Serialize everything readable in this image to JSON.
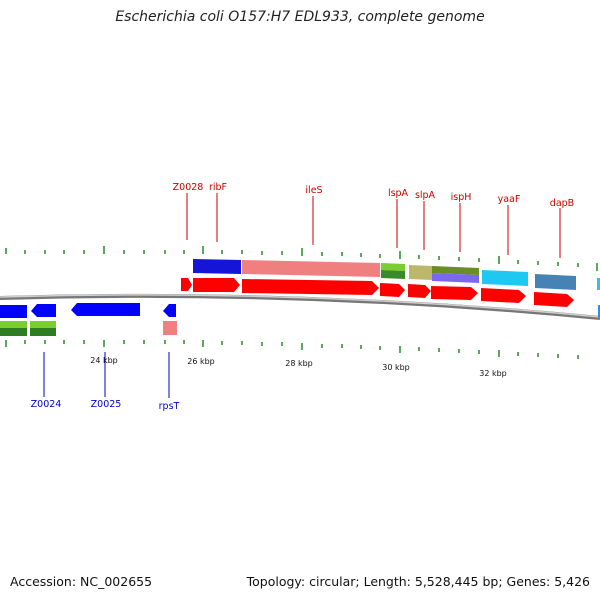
{
  "title": "Escherichia coli O157:H7 EDL933, complete genome",
  "footer": {
    "accession": "Accession: NC_002655",
    "summary": "Topology: circular; Length: 5,528,445 bp; Genes: 5,426"
  },
  "colors": {
    "forward_gene": "#ff0000",
    "reverse_gene": "#0000ff",
    "forward_label": "#cc0000",
    "reverse_label": "#0000cc",
    "tick": "#228b22",
    "backbone": "#888888"
  },
  "scale": {
    "ticks": [
      {
        "label": "24 kbp",
        "kbp": 24
      },
      {
        "label": "26 kbp",
        "kbp": 26
      },
      {
        "label": "28 kbp",
        "kbp": 28
      },
      {
        "label": "30 kbp",
        "kbp": 30
      },
      {
        "label": "32 kbp",
        "kbp": 32
      }
    ]
  },
  "forward_labels": [
    "Z0028",
    "ribF",
    "ileS",
    "lspA",
    "slpA",
    "ispH",
    "yaaF",
    "dapB"
  ],
  "reverse_labels": [
    "Z0024",
    "Z0025",
    "rpsT"
  ]
}
